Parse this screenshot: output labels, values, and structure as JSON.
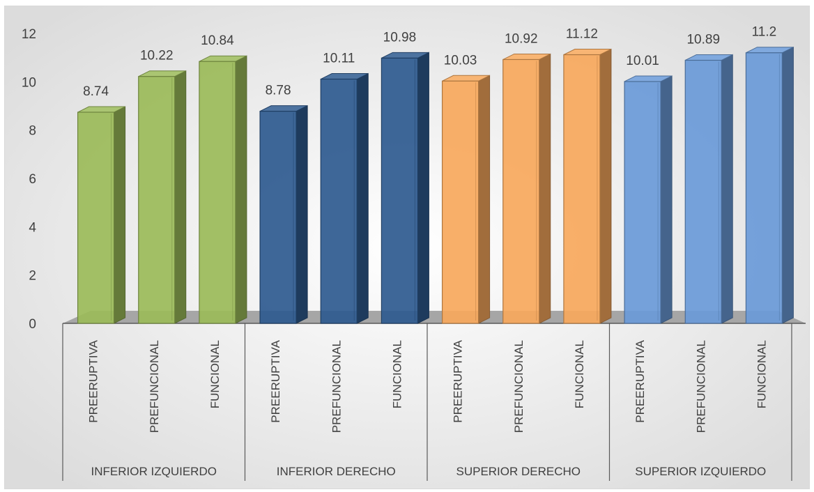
{
  "chart_data": {
    "type": "bar",
    "title": "",
    "xlabel": "",
    "ylabel": "",
    "ylim": [
      0,
      12
    ],
    "yticks": [
      0,
      2,
      4,
      6,
      8,
      10,
      12
    ],
    "grid": false,
    "legend": "none",
    "groups": [
      {
        "label": "INFERIOR IZQUIERDO",
        "bars": [
          {
            "category": "PREERUPTIVA",
            "value": 8.74
          },
          {
            "category": "PREFUNCIONAL",
            "value": 10.22
          },
          {
            "category": "FUNCIONAL",
            "value": 10.84
          }
        ]
      },
      {
        "label": "INFERIOR DERECHO",
        "bars": [
          {
            "category": "PREERUPTIVA",
            "value": 8.78
          },
          {
            "category": "PREFUNCIONAL",
            "value": 10.11
          },
          {
            "category": "FUNCIONAL",
            "value": 10.98
          }
        ]
      },
      {
        "label": "SUPERIOR DERECHO",
        "bars": [
          {
            "category": "PREERUPTIVA",
            "value": 10.03
          },
          {
            "category": "PREFUNCIONAL",
            "value": 10.92
          },
          {
            "category": "FUNCIONAL",
            "value": 11.12
          }
        ]
      },
      {
        "label": "SUPERIOR IZQUIERDO",
        "bars": [
          {
            "category": "PREERUPTIVA",
            "value": 10.01
          },
          {
            "category": "PREFUNCIONAL",
            "value": 10.89
          },
          {
            "category": "FUNCIONAL",
            "value": 11.2
          }
        ]
      }
    ],
    "group_colors": [
      "#9bbb59",
      "#2e5a8f",
      "#f7a85c",
      "#6a9ad8"
    ]
  }
}
